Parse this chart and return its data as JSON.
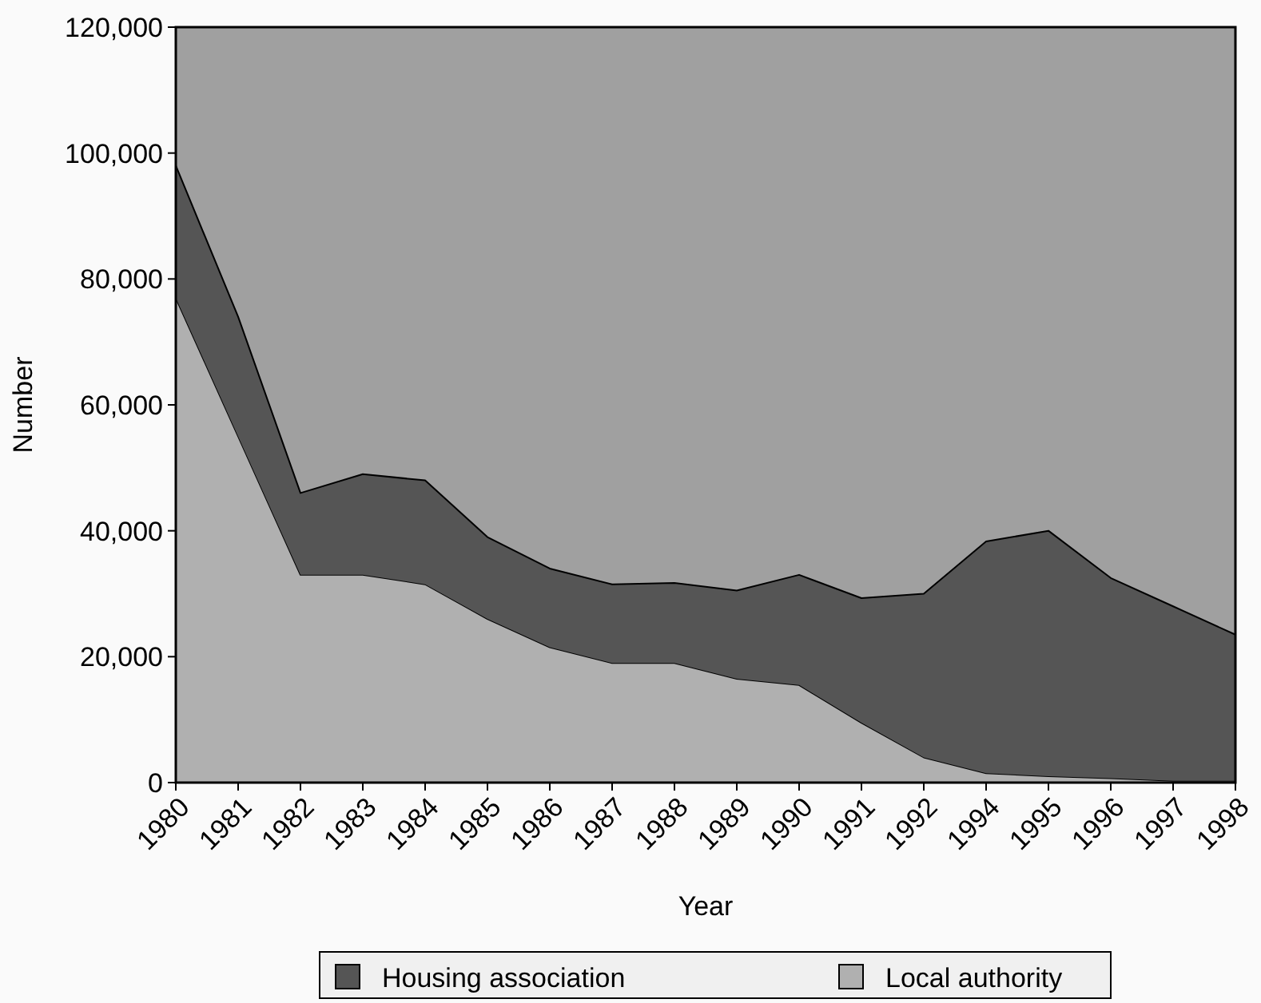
{
  "chart_data": {
    "type": "area",
    "stacked": true,
    "xlabel": "Year",
    "ylabel": "Number",
    "categories": [
      "1980",
      "1981",
      "1982",
      "1983",
      "1984",
      "1985",
      "1986",
      "1987",
      "1988",
      "1989",
      "1990",
      "1991",
      "1992",
      "1994",
      "1995",
      "1996",
      "1997",
      "1998"
    ],
    "series": [
      {
        "name": "Local authority",
        "color": "#b0b0b0",
        "values": [
          77000,
          55000,
          33000,
          33000,
          31500,
          26000,
          21500,
          19000,
          19000,
          16500,
          15500,
          9500,
          4000,
          1500,
          1000,
          700,
          300,
          300
        ]
      },
      {
        "name": "Housing association",
        "color": "#555555",
        "values": [
          21000,
          19000,
          13000,
          16000,
          16500,
          13000,
          12500,
          12500,
          12700,
          14000,
          17500,
          19800,
          26000,
          36800,
          39000,
          31800,
          27700,
          23200
        ]
      }
    ],
    "ylim": [
      0,
      120000
    ],
    "yticks": [
      {
        "value": 0,
        "label": "0"
      },
      {
        "value": 20000,
        "label": "20,000"
      },
      {
        "value": 40000,
        "label": "40,000"
      },
      {
        "value": 60000,
        "label": "60,000"
      },
      {
        "value": 80000,
        "label": "80,000"
      },
      {
        "value": 100000,
        "label": "100,000"
      },
      {
        "value": 120000,
        "label": "120,000"
      }
    ],
    "grid": false,
    "legend": "bottom"
  }
}
